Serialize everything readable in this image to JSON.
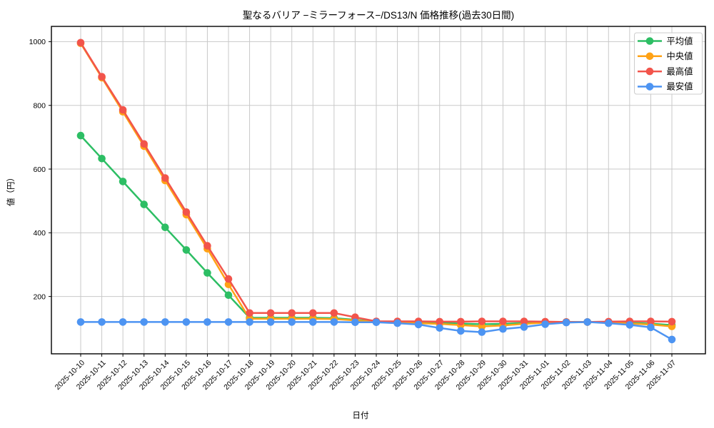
{
  "chart_data": {
    "type": "line",
    "title": "聖なるバリア −ミラーフォース−/DS13/N 価格推移(過去30日間)",
    "xlabel": "日付",
    "ylabel": "値（円）",
    "x": [
      "2025-10-10",
      "2025-10-11",
      "2025-10-12",
      "2025-10-13",
      "2025-10-14",
      "2025-10-15",
      "2025-10-16",
      "2025-10-17",
      "2025-10-18",
      "2025-10-19",
      "2025-10-20",
      "2025-10-21",
      "2025-10-22",
      "2025-10-23",
      "2025-10-24",
      "2025-10-25",
      "2025-10-26",
      "2025-10-27",
      "2025-10-28",
      "2025-10-29",
      "2025-10-30",
      "2025-10-31",
      "2025-11-01",
      "2025-11-02",
      "2025-11-03",
      "2025-11-04",
      "2025-11-05",
      "2025-11-06",
      "2025-11-07"
    ],
    "series": [
      {
        "name": "平均値",
        "color": "#2dbe64",
        "values": [
          705,
          633,
          561,
          489,
          417,
          346,
          274,
          204,
          133,
          133,
          133,
          133,
          132,
          127,
          121,
          120,
          119,
          117,
          115,
          113,
          114,
          117,
          119,
          120,
          120,
          119,
          117,
          115,
          110
        ]
      },
      {
        "name": "中央値",
        "color": "#ffa216",
        "values": [
          995,
          887,
          780,
          672,
          564,
          457,
          350,
          238,
          130,
          130,
          130,
          130,
          129,
          125,
          120,
          118,
          116,
          114,
          110,
          106,
          109,
          114,
          118,
          119,
          120,
          118,
          115,
          112,
          106
        ]
      },
      {
        "name": "最高値",
        "color": "#f2544b",
        "values": [
          997,
          890,
          786,
          679,
          572,
          465,
          359,
          255,
          148,
          148,
          148,
          148,
          148,
          135,
          122,
          122,
          122,
          121,
          121,
          122,
          122,
          122,
          121,
          120,
          120,
          121,
          122,
          122,
          121
        ]
      },
      {
        "name": "最安値",
        "color": "#4d94f2",
        "values": [
          120,
          120,
          120,
          120,
          120,
          120,
          120,
          120,
          120,
          120,
          120,
          120,
          120,
          119,
          119,
          116,
          112,
          101,
          92,
          88,
          98,
          104,
          113,
          118,
          120,
          116,
          111,
          103,
          65
        ]
      }
    ],
    "yticks": [
      200,
      400,
      600,
      800,
      1000
    ],
    "ylim": [
      20,
      1048
    ],
    "grid": true,
    "legend_position": "upper right"
  }
}
